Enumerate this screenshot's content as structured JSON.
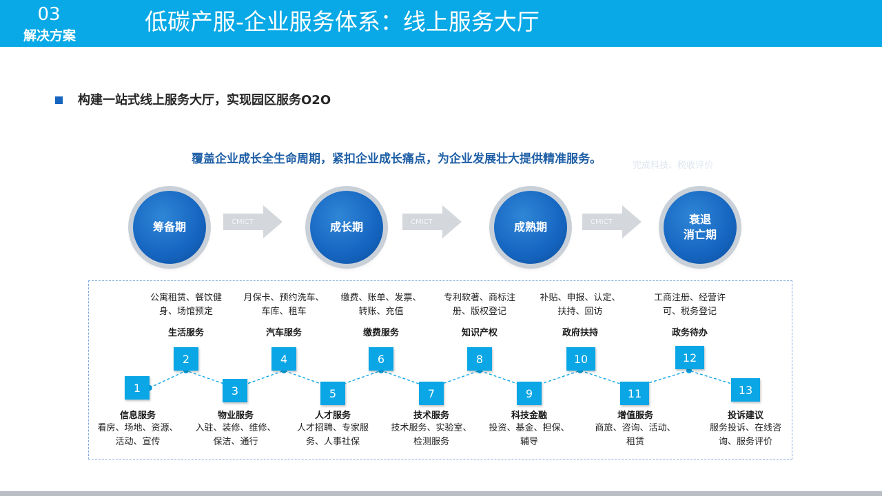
{
  "header": {
    "section_number": "03",
    "section_name": "解决方案",
    "title": "低碳产服-企业服务体系：线上服务大厅"
  },
  "bullet": "构建一站式线上服务大厅，实现园区服务O2O",
  "headline": "覆盖企业成长全生命周期，紧扣企业成长痛点，为企业发展壮大提供精准服务。",
  "ghost_text": "完成科技、税收评价",
  "stages": [
    {
      "label": "筹备期"
    },
    {
      "label": "成长期"
    },
    {
      "label": "成熟期"
    },
    {
      "label": "衰退\n消亡期"
    }
  ],
  "arrow_label": "CMICT",
  "services_top": [
    {
      "num": "2",
      "title": "生活服务",
      "detail": "公寓租赁、餐饮健\n身、场馆预定"
    },
    {
      "num": "4",
      "title": "汽车服务",
      "detail": "月保卡、预约洗车、\n车库、租车"
    },
    {
      "num": "6",
      "title": "缴费服务",
      "detail": "缴费、账单、发票、\n转账、充值"
    },
    {
      "num": "8",
      "title": "知识产权",
      "detail": "专利软著、商标注\n册、版权登记"
    },
    {
      "num": "10",
      "title": "政府扶持",
      "detail": "补贴、申报、认定、\n扶持、回访"
    },
    {
      "num": "12",
      "title": "政务待办",
      "detail": "工商注册、经营许\n可、税务登记"
    }
  ],
  "services_bottom": [
    {
      "num": "1",
      "title": "信息服务",
      "detail": "看房、场地、资源、\n活动、宣传"
    },
    {
      "num": "3",
      "title": "物业服务",
      "detail": "入驻、装修、维修、\n保洁、通行"
    },
    {
      "num": "5",
      "title": "人才服务",
      "detail": "人才招聘、专家服\n务、人事社保"
    },
    {
      "num": "7",
      "title": "技术服务",
      "detail": "技术服务、实验室、\n检测服务"
    },
    {
      "num": "9",
      "title": "科技金融",
      "detail": "投资、基金、担保、\n辅导"
    },
    {
      "num": "11",
      "title": "增值服务",
      "detail": "商旅、咨询、活动、\n租赁"
    },
    {
      "num": "13",
      "title": "投诉建议",
      "detail": "服务投诉、在线咨\n询、服务评价"
    }
  ],
  "colors": {
    "header": "#08a9e6",
    "stage": "#1565c0",
    "box": "#0aa6e6",
    "headline": "#1f5fa6"
  }
}
